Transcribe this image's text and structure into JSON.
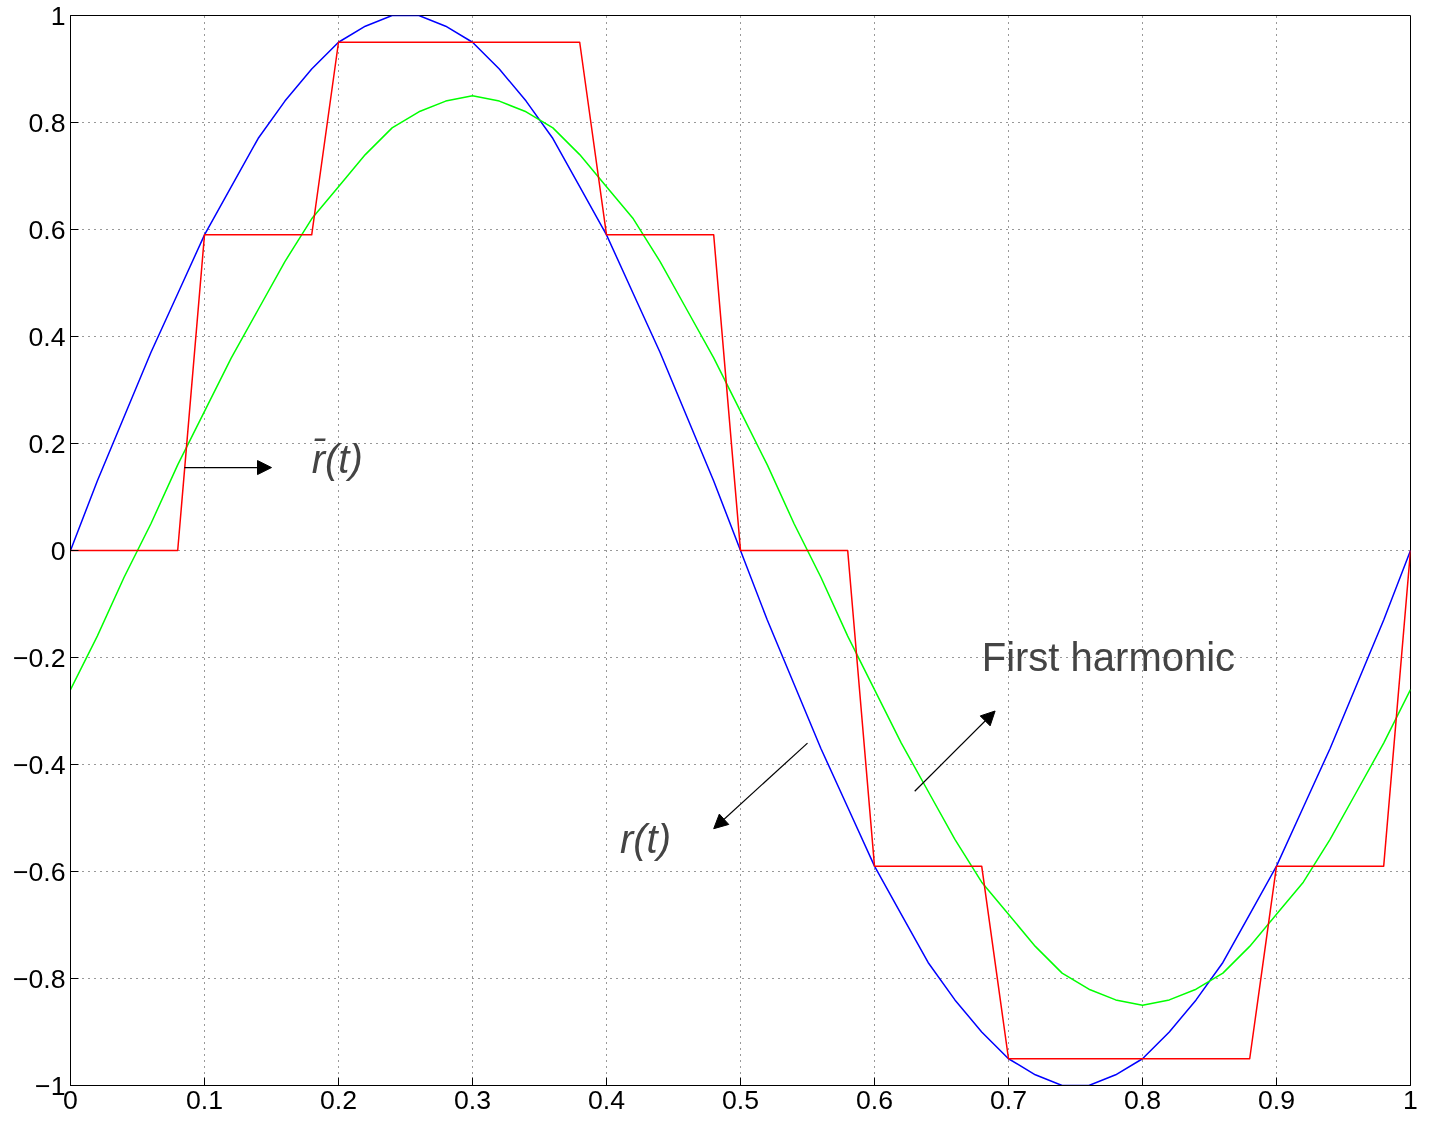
{
  "chart_data": {
    "type": "line",
    "xlim": [
      0,
      1
    ],
    "ylim": [
      -1,
      1
    ],
    "xticks": [
      0,
      0.1,
      0.2,
      0.3,
      0.4,
      0.5,
      0.6,
      0.7,
      0.8,
      0.9,
      1
    ],
    "yticks": [
      {
        "value": -1,
        "label": "−1"
      },
      {
        "value": -0.8,
        "label": "−0.8"
      },
      {
        "value": -0.6,
        "label": "−0.6"
      },
      {
        "value": -0.4,
        "label": "−0.4"
      },
      {
        "value": -0.2,
        "label": "−0.2"
      },
      0,
      0.2,
      0.4,
      0.6,
      0.8,
      1
    ],
    "grid": true,
    "marker": "none",
    "line_style": "solid",
    "x": [
      0,
      0.02,
      0.04,
      0.06,
      0.08,
      0.1,
      0.12,
      0.14,
      0.16,
      0.18,
      0.2,
      0.22,
      0.24,
      0.26,
      0.28,
      0.3,
      0.32,
      0.34,
      0.36,
      0.38,
      0.4,
      0.42,
      0.44,
      0.46,
      0.48,
      0.5,
      0.52,
      0.54,
      0.56,
      0.58,
      0.6,
      0.62,
      0.64,
      0.66,
      0.68,
      0.7,
      0.72,
      0.74,
      0.76,
      0.78,
      0.8,
      0.82,
      0.84,
      0.86,
      0.88,
      0.9,
      0.92,
      0.94,
      0.96,
      0.98,
      1
    ],
    "series": [
      {
        "color": "#0000ff",
        "values": [
          0,
          0.13,
          0.25,
          0.37,
          0.48,
          0.59,
          0.68,
          0.77,
          0.84,
          0.9,
          0.95,
          0.98,
          1,
          1,
          0.98,
          0.95,
          0.9,
          0.84,
          0.77,
          0.68,
          0.59,
          0.48,
          0.37,
          0.25,
          0.13,
          0,
          -0.13,
          -0.25,
          -0.37,
          -0.48,
          -0.59,
          -0.68,
          -0.77,
          -0.84,
          -0.9,
          -0.95,
          -0.98,
          -1,
          -1,
          -0.98,
          -0.95,
          -0.9,
          -0.84,
          -0.77,
          -0.68,
          -0.59,
          -0.48,
          -0.37,
          -0.25,
          -0.13,
          0
        ]
      },
      {
        "color": "#00ff00",
        "values": [
          -0.26,
          -0.16,
          -0.05,
          0.05,
          0.16,
          0.26,
          0.36,
          0.45,
          0.54,
          0.62,
          0.68,
          0.74,
          0.79,
          0.82,
          0.84,
          0.85,
          0.84,
          0.82,
          0.79,
          0.74,
          0.68,
          0.62,
          0.54,
          0.45,
          0.36,
          0.26,
          0.16,
          0.05,
          -0.05,
          -0.16,
          -0.26,
          -0.36,
          -0.45,
          -0.54,
          -0.62,
          -0.68,
          -0.74,
          -0.79,
          -0.82,
          -0.84,
          -0.85,
          -0.84,
          -0.82,
          -0.79,
          -0.74,
          -0.68,
          -0.62,
          -0.54,
          -0.45,
          -0.36,
          -0.26
        ]
      },
      {
        "color": "#ff0000",
        "x": [
          0,
          0.08,
          0.1,
          0.18,
          0.2,
          0.38,
          0.4,
          0.48,
          0.5,
          0.58,
          0.6,
          0.68,
          0.7,
          0.88,
          0.9,
          0.98,
          1
        ],
        "values": [
          0,
          0,
          0.59,
          0.59,
          0.95,
          0.95,
          0.59,
          0.59,
          0,
          0,
          -0.59,
          -0.59,
          -0.95,
          -0.95,
          -0.59,
          -0.59,
          0
        ]
      }
    ],
    "annotations": [
      "r̄(t)",
      "First harmonic",
      "r(t)"
    ]
  }
}
